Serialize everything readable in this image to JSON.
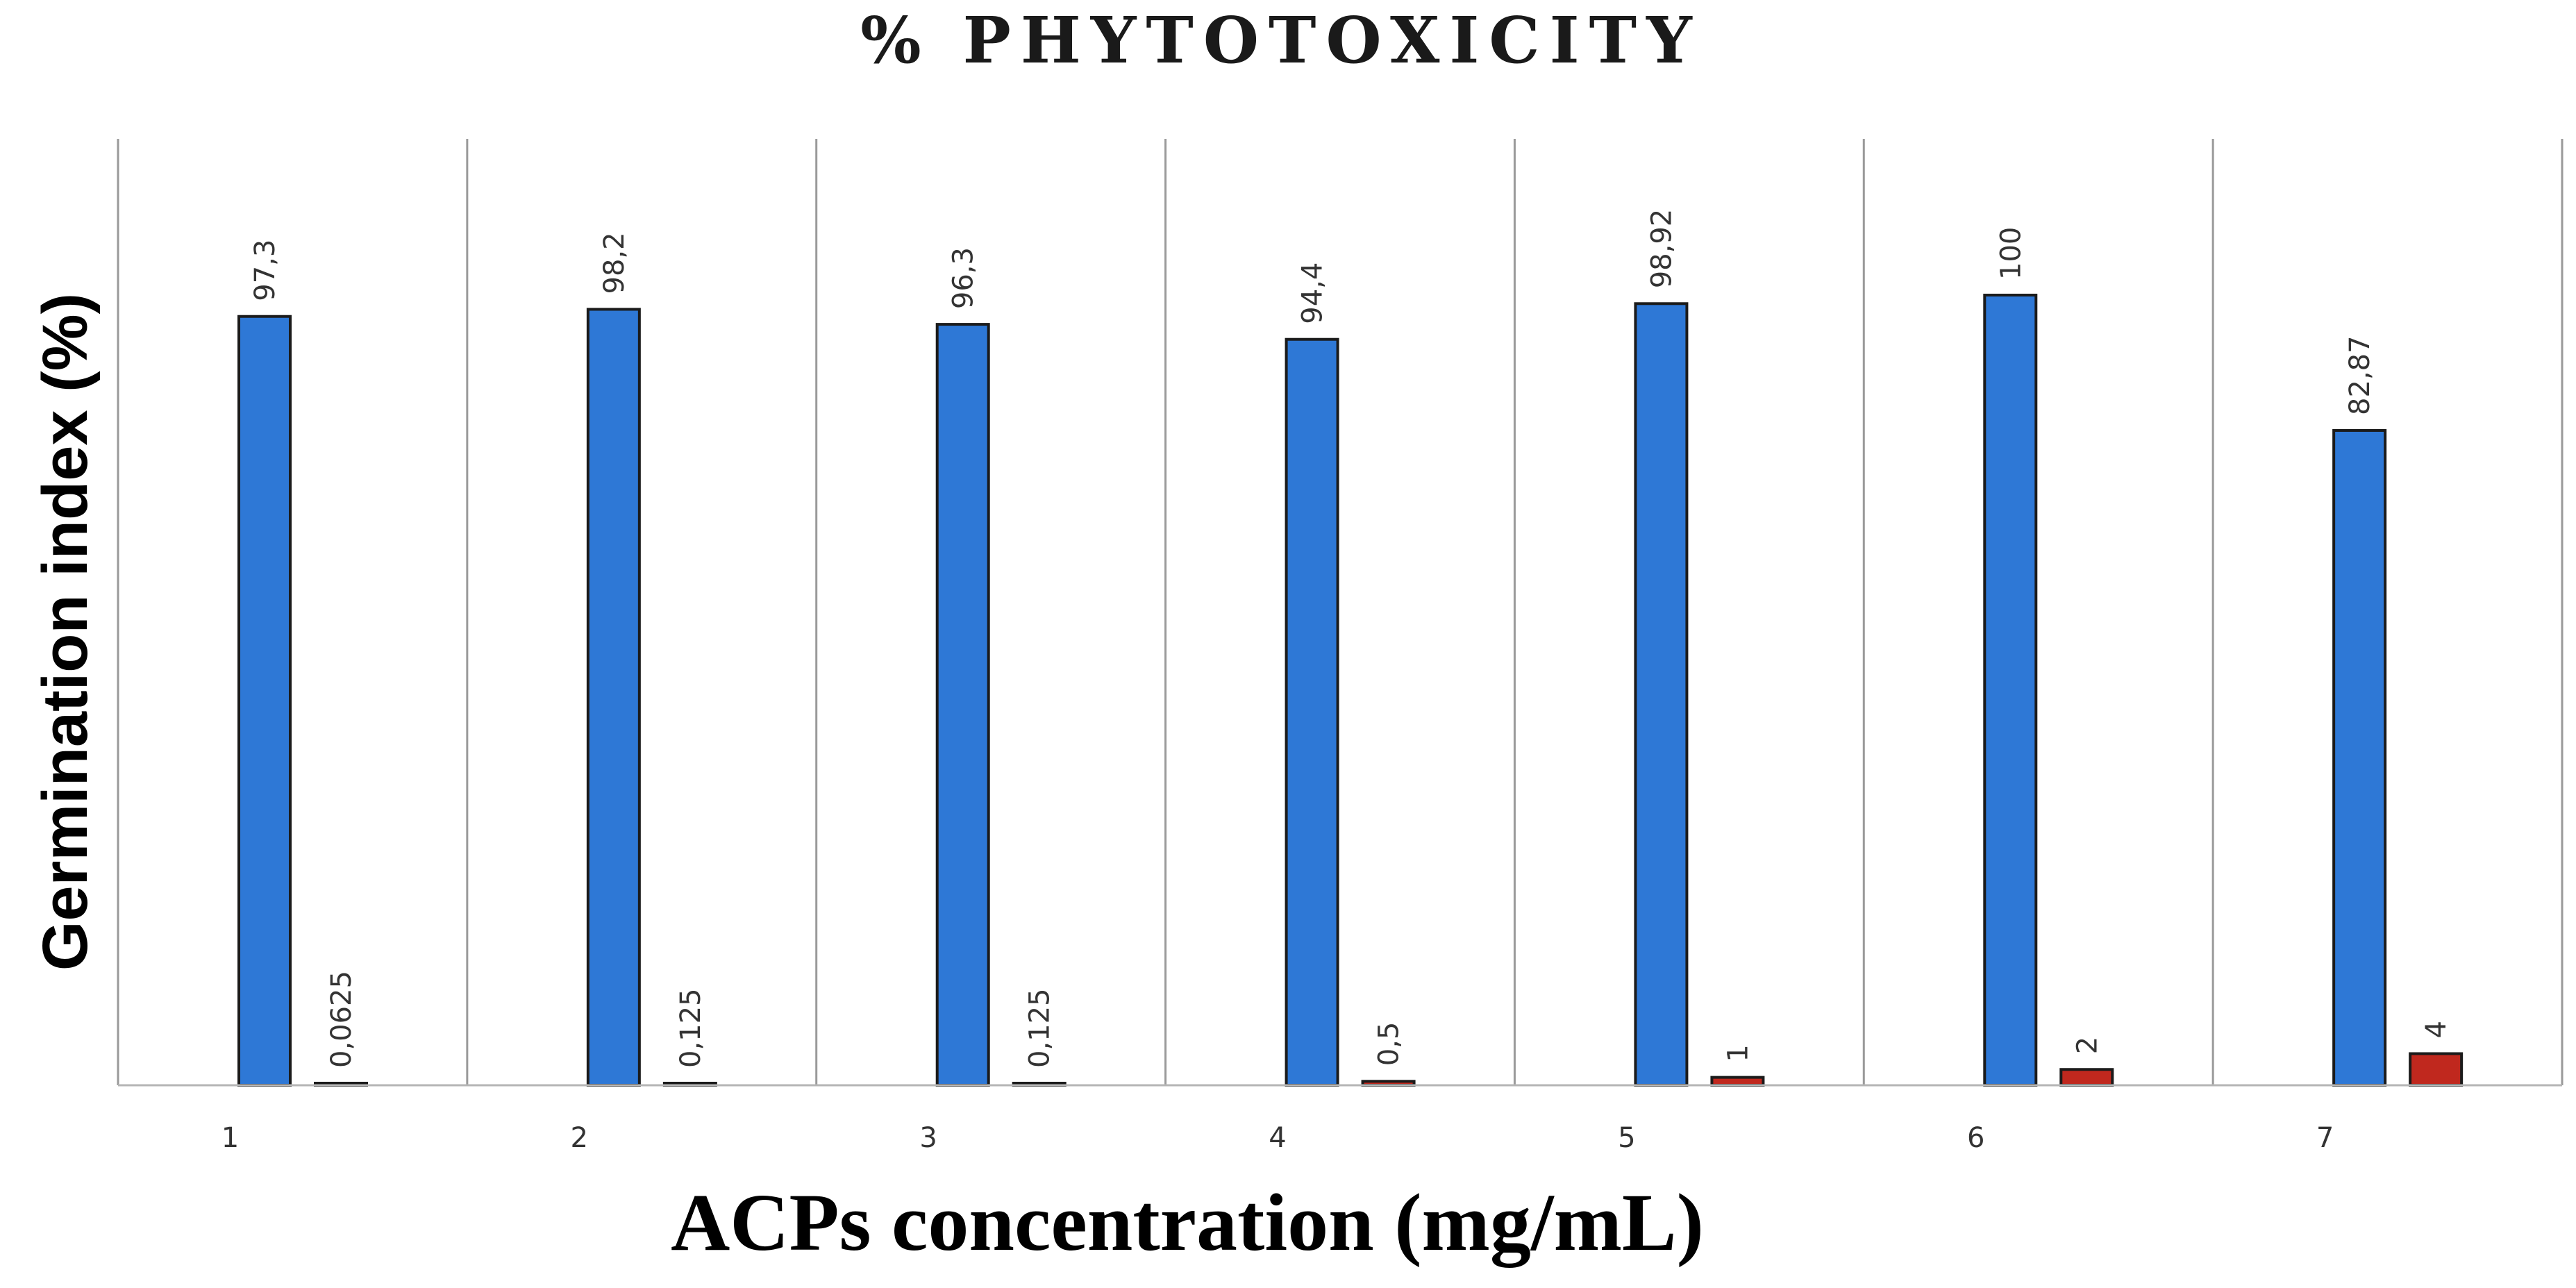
{
  "chart_data": {
    "type": "bar",
    "title": "% PHYTOTOXICITY",
    "xlabel": "ACPs concentration (mg/mL)",
    "ylabel": "Germination index (%)",
    "categories": [
      "1",
      "2",
      "3",
      "4",
      "5",
      "6",
      "7"
    ],
    "ylim": [
      0,
      100
    ],
    "grid": "vertical separators between categories",
    "legend": "none",
    "series": [
      {
        "color": "#2e78d6",
        "values": [
          97.3,
          98.2,
          96.3,
          94.4,
          98.92,
          100,
          82.87
        ],
        "labels": [
          "97,3",
          "98,2",
          "96,3",
          "94,4",
          "98,92",
          "100",
          "82,87"
        ]
      },
      {
        "color": "#c0281e",
        "values": [
          0.0625,
          0.125,
          0.125,
          0.5,
          1,
          2,
          4
        ],
        "labels": [
          "0,0625",
          "0,125",
          "0,125",
          "0,5",
          "1",
          "2",
          "4"
        ]
      }
    ]
  }
}
